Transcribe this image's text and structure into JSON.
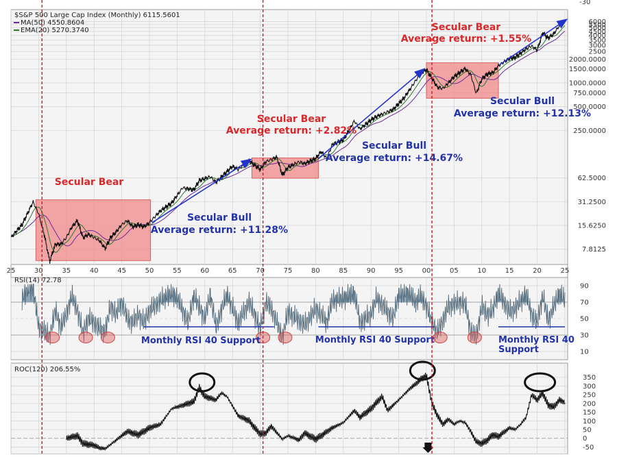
{
  "colors": {
    "panel_bg": "#f4f4f4",
    "grid": "#d6d6d6",
    "price_line": "#111111",
    "ma50": "#6a2a9a",
    "ema20": "#2a7a2a",
    "bear_box": "#f28a8a",
    "bear_text": "#d8282a",
    "bull_text": "#2233aa",
    "trend_arrow": "#2233cc",
    "divider": "#d6161a",
    "rsi_fill": "#7a99ad",
    "rsi_line": "#506878",
    "rsi_circle": "#e06060",
    "roc_line": "#111111"
  },
  "chart_data": [
    {
      "type": "line",
      "panel": "price",
      "legend": {
        "title": "$S&P 500 Large Cap Index (Monthly) 6115.5601",
        "ma": "MA(50) 4550.8604",
        "ema": "EMA(20) 5270.3740"
      },
      "scale": "log",
      "x_tick_labels": [
        "25",
        "30",
        "35",
        "40",
        "45",
        "50",
        "55",
        "60",
        "65",
        "70",
        "75",
        "80",
        "85",
        "90",
        "95",
        "00",
        "05",
        "10",
        "15",
        "20",
        "25"
      ],
      "x_domain": [
        1925,
        2025.5
      ],
      "y_tick_labels": [
        "6000",
        "5500",
        "5000",
        "4500",
        "4000",
        "3500",
        "3000",
        "2500",
        "2000.0000",
        "1500.0000",
        "1000.0000",
        "750.0000",
        "500.0000",
        "250.0000",
        "62.5000",
        "31.2500",
        "15.6250",
        "7.8125"
      ],
      "y_tick_values": [
        6000,
        5500,
        5000,
        4500,
        4000,
        3500,
        3000,
        2500,
        2000,
        1500,
        1000,
        750,
        500,
        250,
        62.5,
        31.25,
        15.625,
        7.8125
      ],
      "top_label": "-30",
      "series_points": [
        [
          1925,
          11
        ],
        [
          1927,
          16
        ],
        [
          1929,
          31
        ],
        [
          1930,
          22
        ],
        [
          1931,
          12
        ],
        [
          1932,
          5.5
        ],
        [
          1933,
          9
        ],
        [
          1934,
          9
        ],
        [
          1935,
          11
        ],
        [
          1936,
          15
        ],
        [
          1937,
          18
        ],
        [
          1938,
          11
        ],
        [
          1939,
          12
        ],
        [
          1940,
          11
        ],
        [
          1941,
          10
        ],
        [
          1942,
          8
        ],
        [
          1943,
          11
        ],
        [
          1944,
          13
        ],
        [
          1945,
          16
        ],
        [
          1946,
          18
        ],
        [
          1947,
          15
        ],
        [
          1948,
          16
        ],
        [
          1949,
          15
        ],
        [
          1950,
          17
        ],
        [
          1952,
          24
        ],
        [
          1954,
          30
        ],
        [
          1956,
          47
        ],
        [
          1958,
          44
        ],
        [
          1959,
          58
        ],
        [
          1961,
          65
        ],
        [
          1962,
          55
        ],
        [
          1965,
          88
        ],
        [
          1966,
          80
        ],
        [
          1968,
          103
        ],
        [
          1970,
          80
        ],
        [
          1971,
          100
        ],
        [
          1973,
          115
        ],
        [
          1974,
          68
        ],
        [
          1975,
          85
        ],
        [
          1977,
          100
        ],
        [
          1978,
          95
        ],
        [
          1980,
          110
        ],
        [
          1981,
          135
        ],
        [
          1982,
          110
        ],
        [
          1983,
          165
        ],
        [
          1985,
          190
        ],
        [
          1987,
          330
        ],
        [
          1988,
          260
        ],
        [
          1990,
          340
        ],
        [
          1991,
          375
        ],
        [
          1994,
          460
        ],
        [
          1996,
          650
        ],
        [
          1998,
          1050
        ],
        [
          1999,
          1350
        ],
        [
          2000,
          1470
        ],
        [
          2001,
          1150
        ],
        [
          2002,
          880
        ],
        [
          2003,
          850
        ],
        [
          2005,
          1200
        ],
        [
          2007,
          1520
        ],
        [
          2008,
          1280
        ],
        [
          2009,
          735
        ],
        [
          2010,
          1120
        ],
        [
          2011,
          1300
        ],
        [
          2012,
          1350
        ],
        [
          2013,
          1650
        ],
        [
          2015,
          2050
        ],
        [
          2016,
          2100
        ],
        [
          2018,
          2700
        ],
        [
          2019,
          2950
        ],
        [
          2020,
          2600
        ],
        [
          2021,
          4300
        ],
        [
          2022,
          3700
        ],
        [
          2023,
          4200
        ],
        [
          2024,
          5300
        ],
        [
          2025,
          6115
        ]
      ],
      "annotations": [
        {
          "label": "Secular Bear",
          "sub": ""
        },
        {
          "label": "Secular Bull",
          "sub": "Average return:  +11.28%"
        },
        {
          "label": "Secular Bear",
          "sub": "Average return:  +2.82%"
        },
        {
          "label": "Secular Bull",
          "sub": "Average return:  +14.67%"
        },
        {
          "label": "Secular Bear",
          "sub": "Average return:  +1.55%"
        },
        {
          "label": "Secular Bull",
          "sub": "Average return:  +12.13%"
        }
      ],
      "bear_periods": [
        [
          1929.5,
          1950.2
        ],
        [
          1968.5,
          1980.5
        ],
        [
          2000.0,
          2013.0
        ]
      ],
      "trend_arrows": [
        [
          [
            1950.5,
            17
          ],
          [
            1968.2,
            106
          ]
        ],
        [
          [
            1980.5,
            110
          ],
          [
            1999.5,
            1480
          ]
        ],
        [
          [
            2013.2,
            1700
          ],
          [
            2025.2,
            6300
          ]
        ]
      ],
      "divider_years": [
        1930.6,
        1970.5,
        2001.0
      ]
    },
    {
      "type": "area",
      "panel": "rsi",
      "legend": "RSI(14) 72.78",
      "y_tick_labels": [
        "90",
        "70",
        "50",
        "30",
        "10"
      ],
      "y_tick_values": [
        90,
        70,
        50,
        30,
        10
      ],
      "support_label": "Monthly RSI 40 Support",
      "support_label_last_line1": "Monthly RSI 40",
      "support_label_last_line2": "Support",
      "support_level": 40,
      "series_points": [
        [
          1927,
          75
        ],
        [
          1928,
          85
        ],
        [
          1929,
          88
        ],
        [
          1930,
          40
        ],
        [
          1931,
          35
        ],
        [
          1932,
          28
        ],
        [
          1933,
          60
        ],
        [
          1934,
          40
        ],
        [
          1935,
          55
        ],
        [
          1936,
          78
        ],
        [
          1937,
          60
        ],
        [
          1938,
          33
        ],
        [
          1939,
          50
        ],
        [
          1940,
          45
        ],
        [
          1941,
          38
        ],
        [
          1942,
          34
        ],
        [
          1943,
          65
        ],
        [
          1944,
          55
        ],
        [
          1945,
          70
        ],
        [
          1946,
          50
        ],
        [
          1947,
          45
        ],
        [
          1948,
          55
        ],
        [
          1949,
          45
        ],
        [
          1950,
          60
        ],
        [
          1952,
          72
        ],
        [
          1954,
          82
        ],
        [
          1955,
          75
        ],
        [
          1957,
          45
        ],
        [
          1958,
          78
        ],
        [
          1960,
          50
        ],
        [
          1961,
          80
        ],
        [
          1962,
          40
        ],
        [
          1964,
          80
        ],
        [
          1966,
          45
        ],
        [
          1968,
          70
        ],
        [
          1969,
          55
        ],
        [
          1970,
          37
        ],
        [
          1971,
          70
        ],
        [
          1972,
          62
        ],
        [
          1973,
          45
        ],
        [
          1974,
          26
        ],
        [
          1975,
          58
        ],
        [
          1977,
          48
        ],
        [
          1978,
          42
        ],
        [
          1980,
          62
        ],
        [
          1981,
          55
        ],
        [
          1982,
          45
        ],
        [
          1983,
          72
        ],
        [
          1985,
          75
        ],
        [
          1987,
          82
        ],
        [
          1988,
          45
        ],
        [
          1990,
          55
        ],
        [
          1991,
          75
        ],
        [
          1994,
          50
        ],
        [
          1995,
          80
        ],
        [
          1997,
          82
        ],
        [
          1998,
          70
        ],
        [
          1999,
          78
        ],
        [
          2000,
          65
        ],
        [
          2001,
          45
        ],
        [
          2002,
          33
        ],
        [
          2003,
          48
        ],
        [
          2004,
          65
        ],
        [
          2006,
          70
        ],
        [
          2007,
          68
        ],
        [
          2008,
          34
        ],
        [
          2009,
          28
        ],
        [
          2010,
          65
        ],
        [
          2011,
          55
        ],
        [
          2012,
          60
        ],
        [
          2013,
          82
        ],
        [
          2015,
          58
        ],
        [
          2016,
          62
        ],
        [
          2018,
          80
        ],
        [
          2019,
          55
        ],
        [
          2020,
          45
        ],
        [
          2021,
          78
        ],
        [
          2022,
          48
        ],
        [
          2023,
          65
        ],
        [
          2024,
          82
        ],
        [
          2025,
          72.78
        ]
      ],
      "low_circles": [
        1932.5,
        1938.5,
        1942.5,
        1970.5,
        1974.5,
        2002.5,
        2008.7
      ],
      "support_lines": [
        [
          1949,
          1972.5
        ],
        [
          1980.5,
          2001.5
        ],
        [
          2013,
          2025
        ]
      ]
    },
    {
      "type": "line",
      "panel": "roc",
      "legend": "ROC(120) 206.55%",
      "y_tick_labels": [
        "350",
        "300",
        "250",
        "200",
        "150",
        "100",
        "50",
        "0",
        "-50"
      ],
      "y_tick_values": [
        350,
        300,
        250,
        200,
        150,
        100,
        50,
        0,
        -50
      ],
      "series_points": [
        [
          1935,
          0
        ],
        [
          1937,
          15
        ],
        [
          1938,
          -30
        ],
        [
          1940,
          -40
        ],
        [
          1941,
          -55
        ],
        [
          1942,
          -60
        ],
        [
          1944,
          -10
        ],
        [
          1946,
          40
        ],
        [
          1948,
          20
        ],
        [
          1950,
          60
        ],
        [
          1952,
          80
        ],
        [
          1954,
          170
        ],
        [
          1956,
          190
        ],
        [
          1958,
          210
        ],
        [
          1959,
          290
        ],
        [
          1960,
          240
        ],
        [
          1962,
          220
        ],
        [
          1963,
          260
        ],
        [
          1964,
          240
        ],
        [
          1966,
          130
        ],
        [
          1968,
          100
        ],
        [
          1969,
          60
        ],
        [
          1970,
          25
        ],
        [
          1971,
          30
        ],
        [
          1972,
          70
        ],
        [
          1974,
          -5
        ],
        [
          1975,
          15
        ],
        [
          1977,
          -10
        ],
        [
          1978,
          30
        ],
        [
          1980,
          -5
        ],
        [
          1981,
          15
        ],
        [
          1983,
          60
        ],
        [
          1985,
          90
        ],
        [
          1987,
          160
        ],
        [
          1988,
          120
        ],
        [
          1990,
          170
        ],
        [
          1992,
          240
        ],
        [
          1993,
          160
        ],
        [
          1995,
          220
        ],
        [
          1997,
          285
        ],
        [
          1998,
          310
        ],
        [
          1999,
          340
        ],
        [
          2000,
          360
        ],
        [
          2001,
          200
        ],
        [
          2002,
          130
        ],
        [
          2003,
          80
        ],
        [
          2004,
          110
        ],
        [
          2005,
          80
        ],
        [
          2006,
          100
        ],
        [
          2007,
          90
        ],
        [
          2008,
          40
        ],
        [
          2009,
          -20
        ],
        [
          2010,
          -30
        ],
        [
          2011,
          -10
        ],
        [
          2012,
          20
        ],
        [
          2013,
          10
        ],
        [
          2015,
          60
        ],
        [
          2016,
          50
        ],
        [
          2017,
          80
        ],
        [
          2018,
          120
        ],
        [
          2019,
          250
        ],
        [
          2020,
          220
        ],
        [
          2021,
          260
        ],
        [
          2022,
          190
        ],
        [
          2023,
          180
        ],
        [
          2024,
          220
        ],
        [
          2025,
          206.55
        ]
      ],
      "peak_ovals": [
        1959.5,
        1999.3,
        2020.5
      ],
      "sell_marker_year": 2000.3
    }
  ]
}
